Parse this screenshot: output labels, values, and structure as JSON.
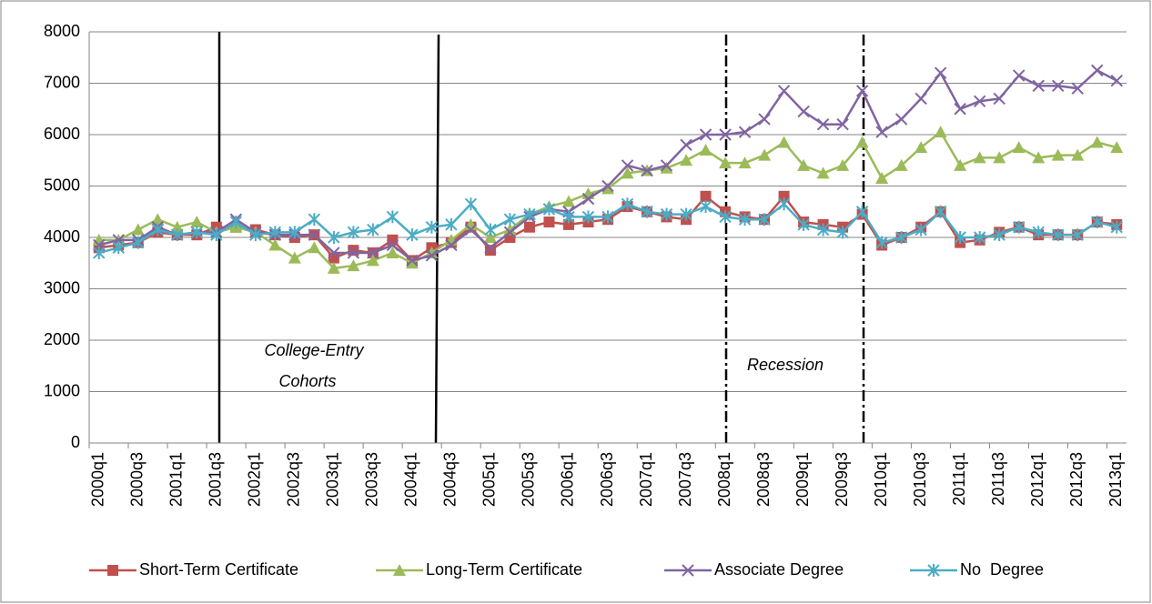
{
  "chart_data": {
    "type": "line",
    "categories": [
      "2000q1",
      null,
      "2000q3",
      null,
      "2001q1",
      null,
      "2001q3",
      null,
      "2002q1",
      null,
      "2002q3",
      null,
      "2003q1",
      null,
      "2003q3",
      null,
      "2004q1",
      null,
      "2004q3",
      null,
      "2005q1",
      null,
      "2005q3",
      null,
      "2006q1",
      null,
      "2006q3",
      null,
      "2007q1",
      null,
      "2007q3",
      null,
      "2008q1",
      null,
      "2008q3",
      null,
      "2009q1",
      null,
      "2009q3",
      null,
      "2010q1",
      null,
      "2010q3",
      null,
      "2011q1",
      null,
      "2011q3",
      null,
      "2012q1",
      null,
      "2012q3",
      null,
      "2013q1"
    ],
    "series": [
      {
        "name": "Short-Term Certificate",
        "color": "#c0504d",
        "marker": "square",
        "values": [
          3800,
          3850,
          3900,
          4100,
          4050,
          4050,
          4200,
          4200,
          4150,
          4050,
          4000,
          4050,
          3600,
          3750,
          3700,
          3950,
          3550,
          3800,
          3900,
          4200,
          3750,
          4000,
          4200,
          4300,
          4250,
          4300,
          4350,
          4600,
          4500,
          4400,
          4350,
          4800,
          4500,
          4400,
          4350,
          4800,
          4300,
          4250,
          4200,
          4450,
          3850,
          4000,
          4200,
          4500,
          3900,
          3950,
          4100,
          4200,
          4050,
          4050,
          4050,
          4300,
          4250
        ]
      },
      {
        "name": "Long-Term Certificate",
        "color": "#9bbb59",
        "marker": "triangle",
        "values": [
          3950,
          3950,
          4150,
          4350,
          4200,
          4300,
          4100,
          4200,
          4100,
          3850,
          3600,
          3800,
          3400,
          3450,
          3550,
          3700,
          3500,
          3700,
          3950,
          4250,
          4000,
          4150,
          4450,
          4600,
          4700,
          4850,
          4950,
          5250,
          5300,
          5350,
          5500,
          5700,
          5450,
          5450,
          5600,
          5850,
          5400,
          5250,
          5400,
          5850,
          5150,
          5400,
          5750,
          6050,
          5400,
          5550,
          5550,
          5750,
          5550,
          5600,
          5600,
          5850,
          5750
        ]
      },
      {
        "name": "Associate Degree",
        "color": "#8064a2",
        "marker": "x",
        "values": [
          3850,
          3950,
          3950,
          4200,
          4050,
          4100,
          4100,
          4350,
          4100,
          4050,
          4050,
          4050,
          3700,
          3700,
          3700,
          3850,
          3550,
          3650,
          3850,
          4150,
          3800,
          4100,
          4400,
          4550,
          4500,
          4750,
          5000,
          5400,
          5300,
          5400,
          5800,
          6000,
          6000,
          6050,
          6300,
          6850,
          6450,
          6200,
          6200,
          6850,
          6050,
          6300,
          6700,
          7200,
          6500,
          6650,
          6700,
          7150,
          6950,
          6950,
          6900,
          7250,
          7050
        ]
      },
      {
        "name": "No  Degree",
        "color": "#4bacc6",
        "marker": "asterisk",
        "values": [
          3700,
          3800,
          3900,
          4150,
          4050,
          4100,
          4050,
          4300,
          4050,
          4100,
          4100,
          4350,
          4000,
          4100,
          4150,
          4400,
          4050,
          4200,
          4250,
          4650,
          4150,
          4350,
          4450,
          4550,
          4400,
          4400,
          4400,
          4650,
          4500,
          4450,
          4450,
          4600,
          4400,
          4350,
          4350,
          4650,
          4250,
          4150,
          4100,
          4500,
          3900,
          4000,
          4150,
          4500,
          4000,
          4000,
          4050,
          4200,
          4100,
          4050,
          4050,
          4300,
          4200
        ]
      }
    ],
    "annotations": [
      "College-Entry",
      "Cohorts",
      "Recession"
    ],
    "ylim": [
      0,
      8000
    ],
    "yticks": [
      0,
      1000,
      2000,
      3000,
      4000,
      5000,
      6000,
      7000,
      8000
    ],
    "grid": true,
    "legend": "bottom"
  }
}
